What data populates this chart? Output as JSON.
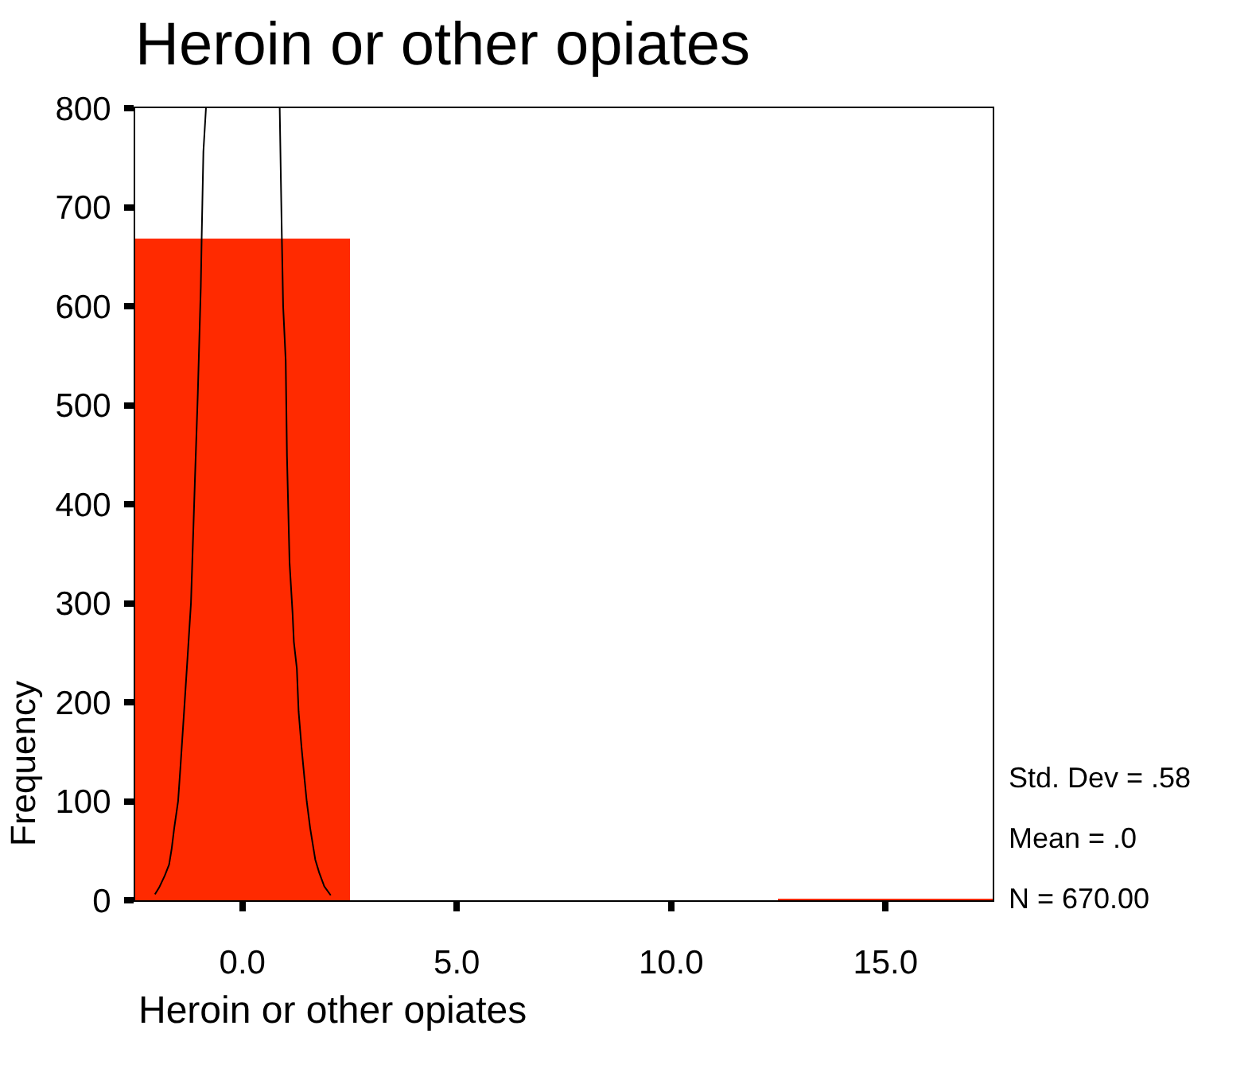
{
  "chart_data": {
    "type": "histogram",
    "title": "Heroin or other opiates",
    "xlabel": "Heroin or other opiates",
    "ylabel": "Frequency",
    "series": [
      {
        "color": "#ff2a00",
        "bins": [
          -2.5,
          2.5,
          7.5,
          12.5,
          17.5
        ],
        "values": [
          669,
          0,
          0,
          1
        ]
      },
      {
        "type": "line",
        "color": "#000000",
        "x": [
          -0.85,
          -0.91,
          -0.95,
          -0.97,
          -1.04,
          -1.11,
          -1.2,
          -1.28,
          -1.36,
          -1.44,
          -1.5,
          -1.59,
          -1.65,
          -1.71,
          -1.81,
          -1.94,
          -2.04
        ],
        "values": [
          800,
          756,
          669,
          620,
          512,
          421,
          300,
          245,
          191,
          138,
          100,
          73,
          52,
          36,
          25,
          13,
          6
        ]
      },
      {
        "type": "line",
        "color": "#000000",
        "x": [
          0.87,
          0.92,
          0.95,
          1.01,
          1.04,
          1.1,
          1.17,
          1.2,
          1.27,
          1.31,
          1.38,
          1.45,
          1.5,
          1.58,
          1.64,
          1.7,
          1.79,
          1.91,
          2.06
        ],
        "values": [
          800,
          669,
          600,
          545,
          448,
          341,
          290,
          261,
          234,
          191,
          154,
          122,
          100,
          73,
          57,
          41,
          28,
          14,
          5
        ]
      }
    ],
    "xlim": [
      -2.5,
      17.5
    ],
    "xticks": [
      {
        "value": 0,
        "label": "0.0"
      },
      {
        "value": 5,
        "label": "5.0"
      },
      {
        "value": 10,
        "label": "10.0"
      },
      {
        "value": 15,
        "label": "15.0"
      }
    ],
    "ylim": [
      0,
      800
    ],
    "yticks": [
      0,
      100,
      200,
      300,
      400,
      500,
      600,
      700,
      800
    ],
    "annotations": [
      "Std. Dev = .58",
      "Mean = .0",
      "N = 670.00"
    ]
  }
}
